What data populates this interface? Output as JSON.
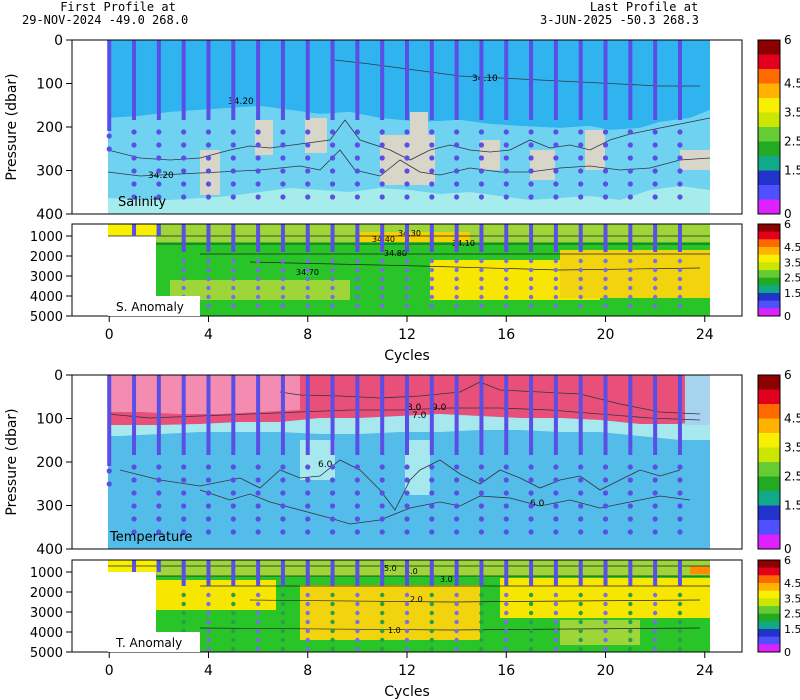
{
  "header": {
    "first_label": "First Profile at",
    "first_value": "29-NOV-2024    -49.0  268.0",
    "last_label": "Last Profile at",
    "last_value": "3-JUN-2025    -50.3  268.3"
  },
  "chart_data": [
    {
      "type": "heatmap",
      "panel": "salinity",
      "title": "Salinity",
      "ylabel": "Pressure (dbar)",
      "xlabel": "Cycles",
      "xlim": [
        -1.5,
        25.5
      ],
      "ylim": [
        400,
        0
      ],
      "x_ticks": [
        "0",
        "4",
        "8",
        "12",
        "16",
        "20",
        "24"
      ],
      "y_ticks": [
        "0",
        "100",
        "200",
        "300",
        "400"
      ],
      "contour_labels": [
        "34.10",
        "34.20",
        "34.20"
      ],
      "colors": {
        "upper": "#30b4f0",
        "lower": "#a6ecec",
        "patch": "#d7d6c8"
      }
    },
    {
      "type": "heatmap",
      "panel": "salinity-anomaly",
      "title": "S. Anomaly",
      "ylim": [
        5000,
        400
      ],
      "y_ticks": [
        "1000",
        "2000",
        "3000",
        "4000",
        "5000"
      ],
      "contour_labels": [
        "34.40",
        "34.30",
        "34.10",
        "34.80",
        "34.70"
      ]
    },
    {
      "type": "heatmap",
      "panel": "temperature",
      "title": "Temperature",
      "ylabel": "Pressure (dbar)",
      "xlabel": "Cycles",
      "xlim": [
        -1.5,
        25.5
      ],
      "ylim": [
        400,
        0
      ],
      "x_ticks": [
        "0",
        "4",
        "8",
        "12",
        "16",
        "20",
        "24"
      ],
      "y_ticks": [
        "0",
        "100",
        "200",
        "300",
        "400"
      ],
      "contour_labels": [
        "8.0",
        "9.0",
        "7.0",
        "6.0",
        "6.0"
      ],
      "colors": {
        "warm": "#e8507a",
        "warm_light": "#f38cb0",
        "cool": "#54bce8",
        "cool_light": "#a6e8ee"
      }
    },
    {
      "type": "heatmap",
      "panel": "temperature-anomaly",
      "title": "T. Anomaly",
      "ylim": [
        5000,
        400
      ],
      "y_ticks": [
        "1000",
        "2000",
        "3000",
        "4000",
        "5000"
      ],
      "contour_labels": [
        "5.0",
        "4.0",
        "3.0",
        "2.0",
        "1.0"
      ]
    }
  ],
  "profiles": {
    "cycles": [
      0,
      1,
      2,
      3,
      4,
      5,
      6,
      7,
      8,
      9,
      10,
      11,
      12,
      13,
      14,
      15,
      16,
      17,
      18,
      19,
      20,
      21,
      22,
      23
    ],
    "color": "#5a4ee6"
  },
  "colorbar": {
    "labels": [
      "6",
      "4.5",
      "3.5",
      "2.5",
      "1.5",
      "0"
    ],
    "colors": [
      "#8b0000",
      "#e3001c",
      "#ff6a00",
      "#ffb200",
      "#f7f000",
      "#cbe600",
      "#66cc33",
      "#22aa22",
      "#11aa88",
      "#2233cc",
      "#5050ff",
      "#dd22ff"
    ]
  }
}
